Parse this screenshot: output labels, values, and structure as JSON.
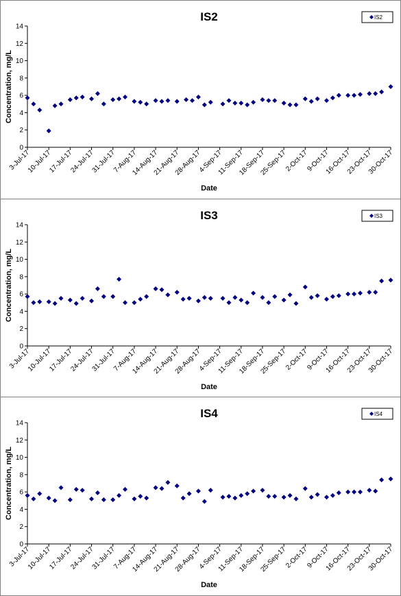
{
  "chart_data": [
    {
      "type": "scatter",
      "title": "IS2",
      "xlabel": "Date",
      "ylabel": "Concentration, mg/L",
      "ylim": [
        0,
        14
      ],
      "yticks": [
        "0",
        "2",
        "4",
        "6",
        "8",
        "10",
        "12",
        "14"
      ],
      "xlim": [
        "2017-07-03",
        "2017-10-30"
      ],
      "xticks": [
        "3-Jul-17",
        "10-Jul-17",
        "17-Jul-17",
        "24-Jul-17",
        "31-Jul-17",
        "7-Aug-17",
        "14-Aug-17",
        "21-Aug-17",
        "28-Aug-17",
        "4-Sep-17",
        "11-Sep-17",
        "18-Sep-17",
        "25-Sep-17",
        "2-Oct-17",
        "9-Oct-17",
        "16-Oct-17",
        "23-Oct-17",
        "30-Oct-17"
      ],
      "grid": false,
      "legend": "top-right",
      "color": "#000080",
      "series": [
        {
          "name": "IS2",
          "points": [
            [
              "2017-07-03",
              5.7
            ],
            [
              "2017-07-05",
              5.0
            ],
            [
              "2017-07-07",
              4.3
            ],
            [
              "2017-07-10",
              1.9
            ],
            [
              "2017-07-12",
              4.8
            ],
            [
              "2017-07-14",
              5.0
            ],
            [
              "2017-07-17",
              5.5
            ],
            [
              "2017-07-19",
              5.7
            ],
            [
              "2017-07-21",
              5.8
            ],
            [
              "2017-07-24",
              5.6
            ],
            [
              "2017-07-26",
              6.2
            ],
            [
              "2017-07-28",
              5.0
            ],
            [
              "2017-07-31",
              5.5
            ],
            [
              "2017-08-02",
              5.6
            ],
            [
              "2017-08-04",
              5.8
            ],
            [
              "2017-08-07",
              5.3
            ],
            [
              "2017-08-09",
              5.2
            ],
            [
              "2017-08-11",
              5.0
            ],
            [
              "2017-08-14",
              5.4
            ],
            [
              "2017-08-16",
              5.3
            ],
            [
              "2017-08-18",
              5.4
            ],
            [
              "2017-08-21",
              5.3
            ],
            [
              "2017-08-24",
              5.5
            ],
            [
              "2017-08-26",
              5.4
            ],
            [
              "2017-08-28",
              5.8
            ],
            [
              "2017-08-30",
              4.9
            ],
            [
              "2017-09-01",
              5.2
            ],
            [
              "2017-09-05",
              5.0
            ],
            [
              "2017-09-07",
              5.4
            ],
            [
              "2017-09-09",
              5.1
            ],
            [
              "2017-09-11",
              5.1
            ],
            [
              "2017-09-13",
              4.9
            ],
            [
              "2017-09-15",
              5.2
            ],
            [
              "2017-09-18",
              5.5
            ],
            [
              "2017-09-20",
              5.4
            ],
            [
              "2017-09-22",
              5.4
            ],
            [
              "2017-09-25",
              5.1
            ],
            [
              "2017-09-27",
              4.9
            ],
            [
              "2017-09-29",
              4.9
            ],
            [
              "2017-10-02",
              5.6
            ],
            [
              "2017-10-04",
              5.3
            ],
            [
              "2017-10-06",
              5.6
            ],
            [
              "2017-10-09",
              5.4
            ],
            [
              "2017-10-11",
              5.7
            ],
            [
              "2017-10-13",
              6.0
            ],
            [
              "2017-10-16",
              6.0
            ],
            [
              "2017-10-18",
              6.0
            ],
            [
              "2017-10-20",
              6.1
            ],
            [
              "2017-10-23",
              6.2
            ],
            [
              "2017-10-25",
              6.2
            ],
            [
              "2017-10-27",
              6.4
            ],
            [
              "2017-10-30",
              7.0
            ]
          ]
        }
      ]
    },
    {
      "type": "scatter",
      "title": "IS3",
      "xlabel": "Date",
      "ylabel": "Concentration, mg/L",
      "ylim": [
        0,
        14
      ],
      "yticks": [
        "0",
        "2",
        "4",
        "6",
        "8",
        "10",
        "12",
        "14"
      ],
      "xlim": [
        "2017-07-03",
        "2017-10-30"
      ],
      "xticks": [
        "3-Jul-17",
        "10-Jul-17",
        "17-Jul-17",
        "24-Jul-17",
        "31-Jul-17",
        "7-Aug-17",
        "14-Aug-17",
        "21-Aug-17",
        "28-Aug-17",
        "4-Sep-17",
        "11-Sep-17",
        "18-Sep-17",
        "25-Sep-17",
        "2-Oct-17",
        "9-Oct-17",
        "16-Oct-17",
        "23-Oct-17",
        "30-Oct-17"
      ],
      "grid": false,
      "legend": "top-right",
      "color": "#000080",
      "series": [
        {
          "name": "IS3",
          "points": [
            [
              "2017-07-03",
              5.7
            ],
            [
              "2017-07-05",
              5.0
            ],
            [
              "2017-07-07",
              5.1
            ],
            [
              "2017-07-10",
              5.1
            ],
            [
              "2017-07-12",
              4.9
            ],
            [
              "2017-07-14",
              5.5
            ],
            [
              "2017-07-17",
              5.3
            ],
            [
              "2017-07-19",
              4.9
            ],
            [
              "2017-07-21",
              5.5
            ],
            [
              "2017-07-24",
              5.2
            ],
            [
              "2017-07-26",
              6.6
            ],
            [
              "2017-07-28",
              5.7
            ],
            [
              "2017-07-31",
              5.7
            ],
            [
              "2017-08-02",
              7.7
            ],
            [
              "2017-08-04",
              5.0
            ],
            [
              "2017-08-07",
              5.0
            ],
            [
              "2017-08-09",
              5.4
            ],
            [
              "2017-08-11",
              5.7
            ],
            [
              "2017-08-14",
              6.6
            ],
            [
              "2017-08-16",
              6.5
            ],
            [
              "2017-08-18",
              5.9
            ],
            [
              "2017-08-21",
              6.2
            ],
            [
              "2017-08-23",
              5.4
            ],
            [
              "2017-08-25",
              5.5
            ],
            [
              "2017-08-28",
              5.2
            ],
            [
              "2017-08-30",
              5.6
            ],
            [
              "2017-09-01",
              5.5
            ],
            [
              "2017-09-05",
              5.5
            ],
            [
              "2017-09-07",
              5.0
            ],
            [
              "2017-09-09",
              5.6
            ],
            [
              "2017-09-11",
              5.3
            ],
            [
              "2017-09-13",
              5.0
            ],
            [
              "2017-09-15",
              6.1
            ],
            [
              "2017-09-18",
              5.6
            ],
            [
              "2017-09-20",
              5.0
            ],
            [
              "2017-09-22",
              5.7
            ],
            [
              "2017-09-25",
              5.3
            ],
            [
              "2017-09-27",
              5.9
            ],
            [
              "2017-09-29",
              4.9
            ],
            [
              "2017-10-02",
              6.8
            ],
            [
              "2017-10-04",
              5.6
            ],
            [
              "2017-10-06",
              5.8
            ],
            [
              "2017-10-09",
              5.4
            ],
            [
              "2017-10-11",
              5.7
            ],
            [
              "2017-10-13",
              5.8
            ],
            [
              "2017-10-16",
              6.0
            ],
            [
              "2017-10-18",
              6.0
            ],
            [
              "2017-10-20",
              6.1
            ],
            [
              "2017-10-23",
              6.2
            ],
            [
              "2017-10-25",
              6.2
            ],
            [
              "2017-10-27",
              7.5
            ],
            [
              "2017-10-30",
              7.6
            ]
          ]
        }
      ]
    },
    {
      "type": "scatter",
      "title": "IS4",
      "xlabel": "Date",
      "ylabel": "Concentration, mg/L",
      "ylim": [
        0,
        14
      ],
      "yticks": [
        "0",
        "2",
        "4",
        "6",
        "8",
        "10",
        "12",
        "14"
      ],
      "xlim": [
        "2017-07-03",
        "2017-10-30"
      ],
      "xticks": [
        "3-Jul-17",
        "10-Jul-17",
        "17-Jul-17",
        "24-Jul-17",
        "31-Jul-17",
        "7-Aug-17",
        "14-Aug-17",
        "21-Aug-17",
        "28-Aug-17",
        "4-Sep-17",
        "11-Sep-17",
        "18-Sep-17",
        "25-Sep-17",
        "2-Oct-17",
        "9-Oct-17",
        "16-Oct-17",
        "23-Oct-17",
        "30-Oct-17"
      ],
      "grid": false,
      "legend": "top-right",
      "color": "#000080",
      "series": [
        {
          "name": "IS4",
          "points": [
            [
              "2017-07-03",
              5.6
            ],
            [
              "2017-07-05",
              5.2
            ],
            [
              "2017-07-07",
              5.8
            ],
            [
              "2017-07-10",
              5.3
            ],
            [
              "2017-07-12",
              5.0
            ],
            [
              "2017-07-14",
              6.5
            ],
            [
              "2017-07-17",
              5.1
            ],
            [
              "2017-07-19",
              6.3
            ],
            [
              "2017-07-21",
              6.2
            ],
            [
              "2017-07-24",
              5.2
            ],
            [
              "2017-07-26",
              5.9
            ],
            [
              "2017-07-28",
              5.1
            ],
            [
              "2017-07-31",
              5.1
            ],
            [
              "2017-08-02",
              5.6
            ],
            [
              "2017-08-04",
              6.3
            ],
            [
              "2017-08-07",
              5.2
            ],
            [
              "2017-08-09",
              5.5
            ],
            [
              "2017-08-11",
              5.3
            ],
            [
              "2017-08-14",
              6.5
            ],
            [
              "2017-08-16",
              6.4
            ],
            [
              "2017-08-18",
              7.1
            ],
            [
              "2017-08-21",
              6.7
            ],
            [
              "2017-08-23",
              5.3
            ],
            [
              "2017-08-25",
              5.8
            ],
            [
              "2017-08-28",
              6.1
            ],
            [
              "2017-08-30",
              4.9
            ],
            [
              "2017-09-01",
              6.2
            ],
            [
              "2017-09-05",
              5.4
            ],
            [
              "2017-09-07",
              5.5
            ],
            [
              "2017-09-09",
              5.3
            ],
            [
              "2017-09-11",
              5.6
            ],
            [
              "2017-09-13",
              5.8
            ],
            [
              "2017-09-15",
              6.1
            ],
            [
              "2017-09-18",
              6.2
            ],
            [
              "2017-09-20",
              5.5
            ],
            [
              "2017-09-22",
              5.5
            ],
            [
              "2017-09-25",
              5.4
            ],
            [
              "2017-09-27",
              5.6
            ],
            [
              "2017-09-29",
              5.2
            ],
            [
              "2017-10-02",
              6.4
            ],
            [
              "2017-10-04",
              5.4
            ],
            [
              "2017-10-06",
              5.7
            ],
            [
              "2017-10-09",
              5.4
            ],
            [
              "2017-10-11",
              5.6
            ],
            [
              "2017-10-13",
              5.9
            ],
            [
              "2017-10-16",
              6.0
            ],
            [
              "2017-10-18",
              6.0
            ],
            [
              "2017-10-20",
              6.0
            ],
            [
              "2017-10-23",
              6.2
            ],
            [
              "2017-10-25",
              6.1
            ],
            [
              "2017-10-27",
              7.4
            ],
            [
              "2017-10-30",
              7.5
            ]
          ]
        }
      ]
    }
  ]
}
